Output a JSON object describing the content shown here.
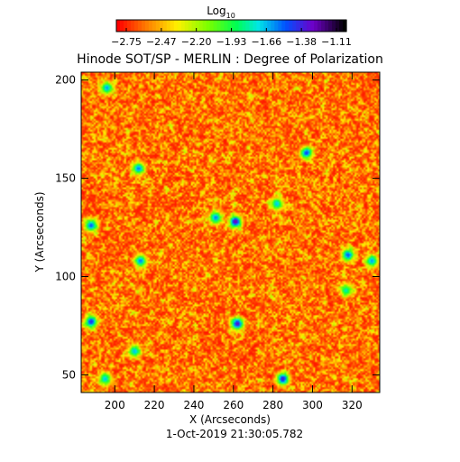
{
  "chart_data": {
    "type": "heatmap",
    "title": "Hinode SOT/SP - MERLIN : Degree of Polarization",
    "xlabel": "X (Arcseconds)",
    "ylabel": "Y (Arcseconds)",
    "xlim": [
      183,
      334
    ],
    "ylim": [
      41,
      204
    ],
    "xticks": [
      200,
      220,
      240,
      260,
      280,
      300,
      320
    ],
    "yticks": [
      50,
      100,
      150,
      200
    ],
    "xtick_labels": [
      "200",
      "220",
      "240",
      "260",
      "280",
      "300",
      "320"
    ],
    "ytick_labels": [
      "50",
      "100",
      "150",
      "200"
    ],
    "colorbar": {
      "title_main": "Log",
      "title_sub": "10",
      "min": -2.75,
      "max": -1.0,
      "tick_labels": [
        "−2.75",
        "−2.47",
        "−2.20",
        "−1.93",
        "−1.66",
        "−1.38",
        "−1.11"
      ]
    },
    "timestamp": "1-Oct-2019 21:30:05.782",
    "patches": [
      {
        "x": 261,
        "y": 128,
        "value": -1.2
      },
      {
        "x": 285,
        "y": 48,
        "value": -1.3
      },
      {
        "x": 262,
        "y": 76,
        "value": -1.25
      },
      {
        "x": 188,
        "y": 77,
        "value": -1.35
      },
      {
        "x": 297,
        "y": 163,
        "value": -1.4
      },
      {
        "x": 212,
        "y": 155,
        "value": -1.5
      },
      {
        "x": 188,
        "y": 126,
        "value": -1.45
      },
      {
        "x": 213,
        "y": 108,
        "value": -1.5
      },
      {
        "x": 318,
        "y": 111,
        "value": -1.45
      },
      {
        "x": 282,
        "y": 137,
        "value": -1.6
      },
      {
        "x": 196,
        "y": 196,
        "value": -1.55
      },
      {
        "x": 210,
        "y": 62,
        "value": -1.6
      },
      {
        "x": 195,
        "y": 48,
        "value": -1.6
      },
      {
        "x": 330,
        "y": 108,
        "value": -1.55
      },
      {
        "x": 251,
        "y": 130,
        "value": -1.5
      },
      {
        "x": 317,
        "y": 93,
        "value": -1.7
      }
    ]
  }
}
